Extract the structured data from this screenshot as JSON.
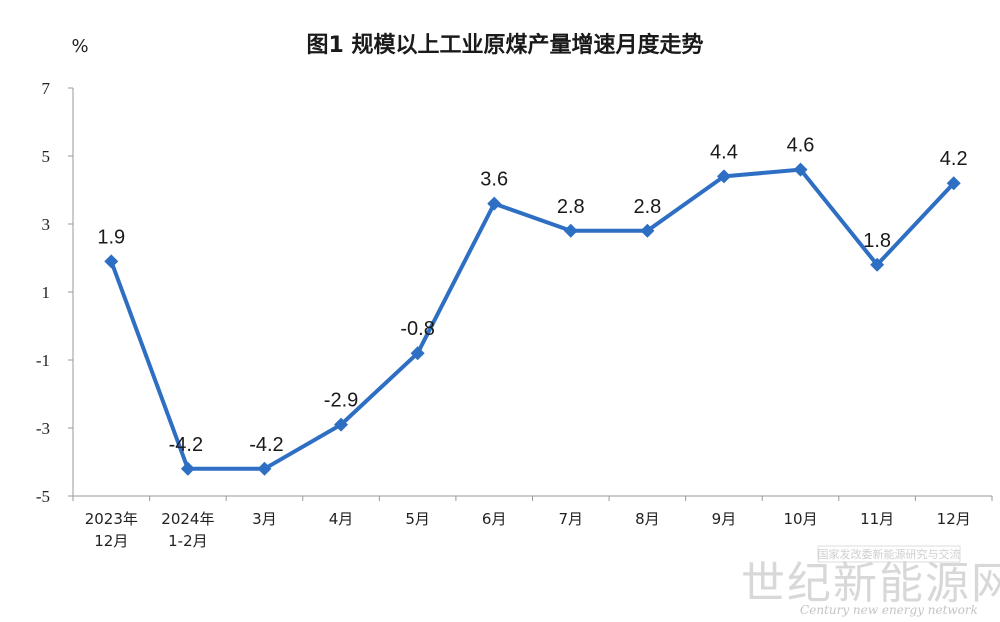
{
  "chart_data": {
    "type": "line",
    "title": "图1  规模以上工业原煤产量增速月度走势",
    "ylabel": "%",
    "ylim": [
      -5,
      7
    ],
    "yticks": [
      7,
      5,
      3,
      1,
      -1,
      -3,
      -5
    ],
    "categories": [
      [
        "2023年",
        "12月"
      ],
      [
        "2024年",
        "1-2月"
      ],
      [
        "3月"
      ],
      [
        "4月"
      ],
      [
        "5月"
      ],
      [
        "6月"
      ],
      [
        "7月"
      ],
      [
        "8月"
      ],
      [
        "9月"
      ],
      [
        "10月"
      ],
      [
        "11月"
      ],
      [
        "12月"
      ]
    ],
    "series": [
      {
        "values": [
          1.9,
          -4.2,
          -4.2,
          -2.9,
          -0.8,
          3.6,
          2.8,
          2.8,
          4.4,
          4.6,
          1.8,
          4.2
        ],
        "labels": [
          "1.9",
          "-4.2",
          "-4.2",
          "-2.9",
          "-0.8",
          "3.6",
          "2.8",
          "2.8",
          "4.4",
          "4.6",
          "1.8",
          "4.2"
        ],
        "color": "#2e6fc4"
      }
    ],
    "grid": false,
    "legend": "none"
  },
  "watermark": {
    "top_text": "国家发改委新能源研究与交流",
    "name": "世纪新能源网",
    "english": "Century new energy network"
  }
}
